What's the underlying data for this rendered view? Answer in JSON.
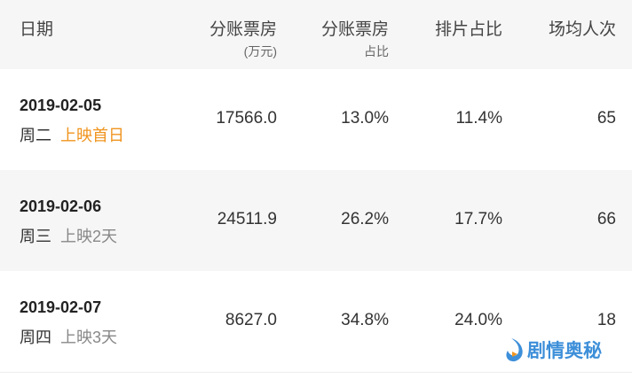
{
  "header": {
    "date": "日期",
    "box_office": "分账票房",
    "box_office_unit": "(万元)",
    "share": "分账票房",
    "share_sub": "占比",
    "screening": "排片占比",
    "avg": "场均人次"
  },
  "rows": [
    {
      "date": "2019-02-05",
      "weekday": "周二",
      "release": "上映首日",
      "box_office": "17566.0",
      "share": "13.0%",
      "screening": "11.4%",
      "avg": "65"
    },
    {
      "date": "2019-02-06",
      "weekday": "周三",
      "release": "上映2天",
      "box_office": "24511.9",
      "share": "26.2%",
      "screening": "17.7%",
      "avg": "66"
    },
    {
      "date": "2019-02-07",
      "weekday": "周四",
      "release": "上映3天",
      "box_office": "8627.0",
      "share": "34.8%",
      "screening": "24.0%",
      "avg": "18"
    }
  ],
  "watermark": "剧情奥秘",
  "colors": {
    "accent": "#f0941e",
    "watermark": "#3d8fd9",
    "stripe": "#f6f6f6"
  }
}
